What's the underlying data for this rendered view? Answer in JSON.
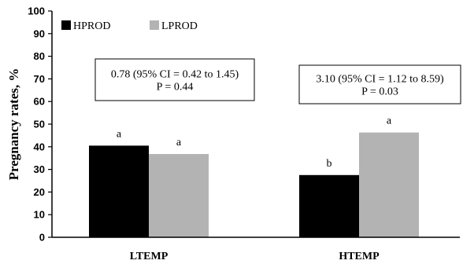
{
  "chart_data": {
    "type": "bar",
    "title": "",
    "xlabel": "",
    "ylabel": "Pregnancy rates, %",
    "ylim": [
      0,
      100
    ],
    "yticks": [
      0,
      10,
      20,
      30,
      40,
      50,
      60,
      70,
      80,
      90,
      100
    ],
    "grid": false,
    "legend_position": "top-left",
    "categories": [
      "LTEMP",
      "HTEMP"
    ],
    "series": [
      {
        "name": "HPROD",
        "color": "#000000",
        "values": [
          40.5,
          27.5
        ],
        "labels": [
          "a",
          "b"
        ]
      },
      {
        "name": "LPROD",
        "color": "#b3b3b3",
        "values": [
          36.8,
          46.3
        ],
        "labels": [
          "a",
          "a"
        ]
      }
    ],
    "annotations": [
      {
        "category": "LTEMP",
        "lines": [
          "0.78 (95% CI = 0.42 to 1.45)",
          "P = 0.44"
        ]
      },
      {
        "category": "HTEMP",
        "lines": [
          "3.10 (95% CI = 1.12 to 8.59)",
          "P = 0.03"
        ]
      }
    ]
  }
}
